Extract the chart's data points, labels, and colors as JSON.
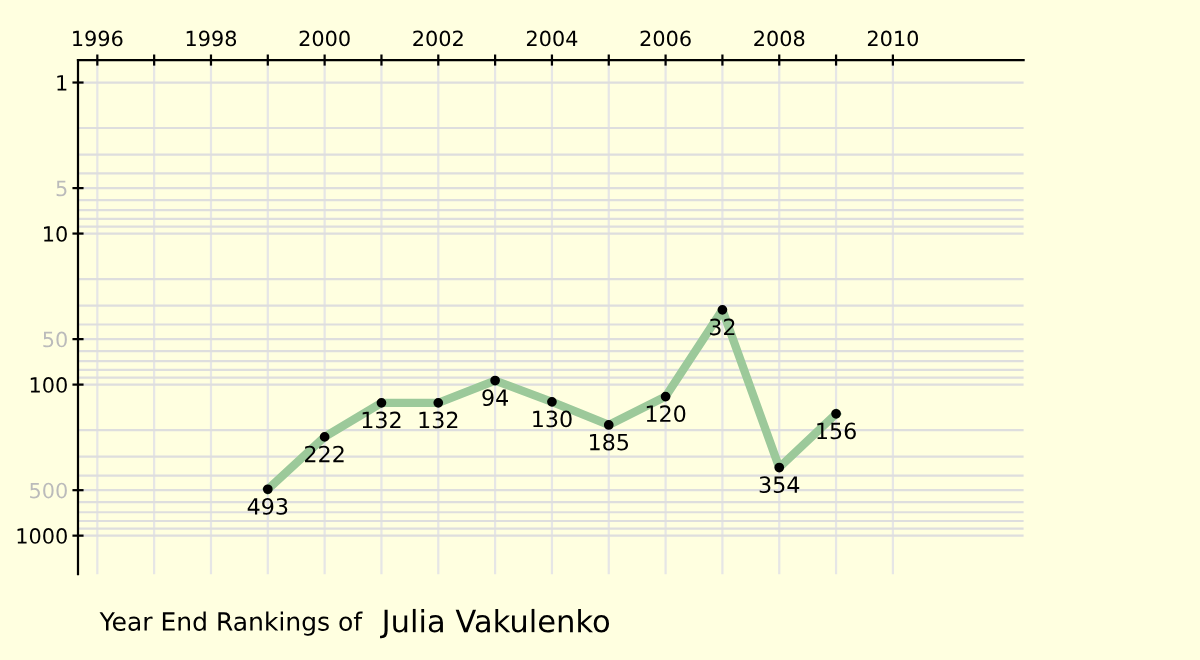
{
  "chart_data": {
    "type": "line",
    "title": "Year End Rankings of",
    "subtitle": "Julia Vakulenko",
    "x": [
      1999,
      2000,
      2001,
      2002,
      2003,
      2004,
      2005,
      2006,
      2007,
      2008,
      2009
    ],
    "series": [
      {
        "color": "#9cc99a",
        "values": [
          493,
          222,
          132,
          132,
          94,
          130,
          185,
          120,
          32,
          354,
          156
        ]
      }
    ],
    "xlim": [
      1995.66,
      2012.3
    ],
    "ylim": [
      1800,
      0.71
    ],
    "log": "y",
    "xticks": [
      1996,
      {
        "value": 1997,
        "label": null
      },
      1998,
      {
        "value": 1999,
        "label": null
      },
      2000,
      {
        "value": 2001,
        "label": null
      },
      2002,
      {
        "value": 2003,
        "label": null
      },
      2004,
      {
        "value": 2005,
        "label": null
      },
      2006,
      {
        "value": 2007,
        "label": null
      },
      2008,
      {
        "value": 2009,
        "label": null
      },
      2010
    ],
    "yticks": [
      1,
      5,
      10,
      50,
      100,
      500,
      1000
    ],
    "grid": true,
    "marker": "circle",
    "line_style": "solid",
    "data_labels": true
  }
}
